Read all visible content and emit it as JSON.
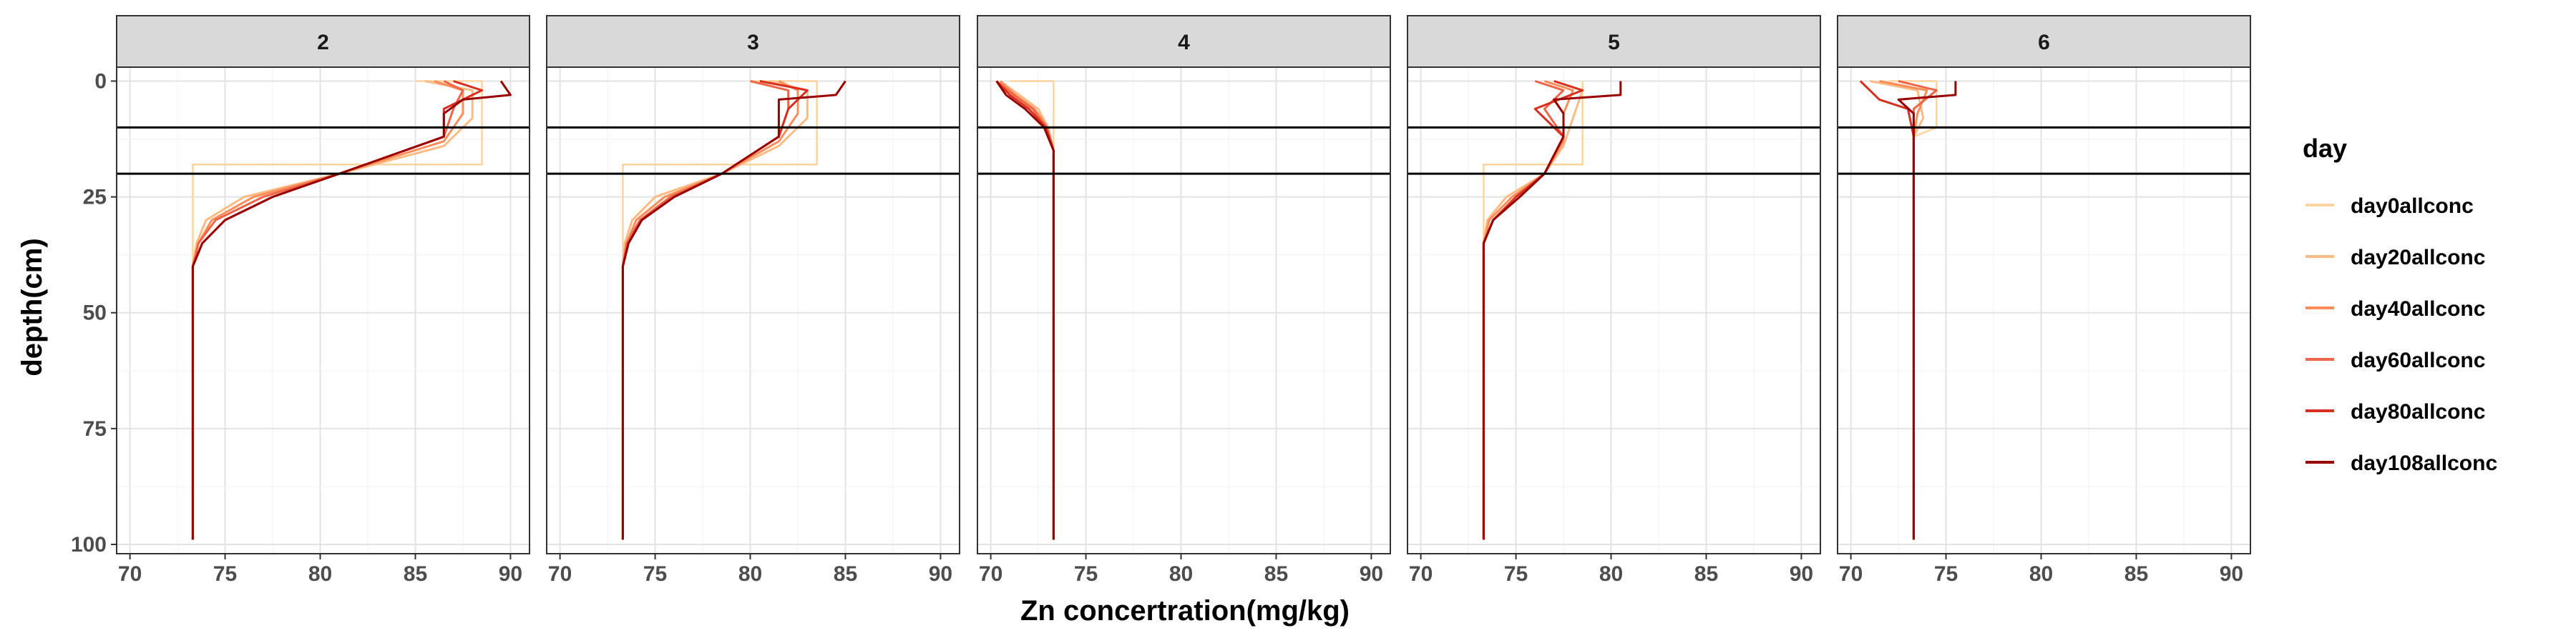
{
  "chart_data": {
    "type": "line",
    "xlabel": "Zn concertration(mg/kg)",
    "ylabel": "depth(cm)",
    "xlim": [
      69.3,
      91.0
    ],
    "ylim": [
      -3,
      102
    ],
    "y_reversed": true,
    "xticks": [
      70,
      75,
      80,
      85,
      90
    ],
    "yticks": [
      0,
      25,
      50,
      75,
      100
    ],
    "grid": true,
    "hlines": [
      10,
      20
    ],
    "legend": {
      "title": "day",
      "position": "right",
      "entries": [
        "day0allconc",
        "day20allconc",
        "day40allconc",
        "day60allconc",
        "day80allconc",
        "day108allconc"
      ]
    },
    "series_colors": [
      "#fdd49e",
      "#fdbb84",
      "#fc8d59",
      "#ef6548",
      "#d7301f",
      "#990000"
    ],
    "panels": [
      {
        "label": "2",
        "series": [
          {
            "name": "day0allconc",
            "x": [
              85,
              88.5,
              88.5,
              73.3,
              73.3,
              73.3
            ],
            "y": [
              0,
              0,
              18,
              18,
              20,
              99
            ]
          },
          {
            "name": "day20allconc",
            "x": [
              85.5,
              88,
              88,
              86.5,
              81,
              76,
              74,
              73.5,
              73.3,
              73.3
            ],
            "y": [
              0,
              2,
              8,
              14,
              20,
              25,
              30,
              35,
              40,
              99
            ]
          },
          {
            "name": "day40allconc",
            "x": [
              86,
              87.5,
              87.5,
              86.5,
              81,
              76.5,
              74.3,
              73.6,
              73.3,
              73.3
            ],
            "y": [
              0,
              2,
              7,
              13,
              20,
              25,
              30,
              35,
              40,
              99
            ]
          },
          {
            "name": "day60allconc",
            "x": [
              86.5,
              87.5,
              87,
              86.5,
              81,
              77,
              74.5,
              73.6,
              73.3,
              73.3
            ],
            "y": [
              0,
              2,
              6,
              12,
              20,
              25,
              30,
              35,
              40,
              99
            ]
          },
          {
            "name": "day80allconc",
            "x": [
              87,
              88.5,
              86.5,
              86.5,
              81,
              77.5,
              75,
              73.8,
              73.3,
              73.3
            ],
            "y": [
              0,
              2,
              6,
              12,
              20,
              25,
              30,
              35,
              40,
              99
            ]
          },
          {
            "name": "day108allconc",
            "x": [
              89.5,
              90,
              87.5,
              86.5,
              86.5,
              81,
              77.5,
              75,
              73.8,
              73.3,
              73.3
            ],
            "y": [
              0,
              3,
              4,
              7,
              12,
              20,
              25,
              30,
              35,
              40,
              99
            ]
          }
        ]
      },
      {
        "label": "3",
        "series": [
          {
            "name": "day0allconc",
            "x": [
              80,
              83.5,
              83.5,
              73.3,
              73.3,
              73.3
            ],
            "y": [
              0,
              0,
              18,
              18,
              20,
              99
            ]
          },
          {
            "name": "day20allconc",
            "x": [
              81,
              83,
              83,
              81.5,
              78.5,
              75,
              73.8,
              73.4,
              73.3,
              73.3
            ],
            "y": [
              0,
              2,
              8,
              14,
              20,
              25,
              30,
              35,
              40,
              99
            ]
          },
          {
            "name": "day40allconc",
            "x": [
              81.5,
              82.5,
              82.5,
              81.5,
              78.5,
              75.5,
              74,
              73.5,
              73.3,
              73.3
            ],
            "y": [
              0,
              2,
              7,
              13,
              20,
              25,
              30,
              35,
              40,
              99
            ]
          },
          {
            "name": "day60allconc",
            "x": [
              80,
              82,
              82,
              81.5,
              78.5,
              75.8,
              74.2,
              73.5,
              73.3,
              73.3
            ],
            "y": [
              0,
              2,
              6,
              12,
              20,
              25,
              30,
              35,
              40,
              99
            ]
          },
          {
            "name": "day80allconc",
            "x": [
              80.5,
              83,
              82,
              81.5,
              78.5,
              76,
              74.3,
              73.6,
              73.3,
              73.3
            ],
            "y": [
              0,
              2,
              6,
              12,
              20,
              25,
              30,
              35,
              40,
              99
            ]
          },
          {
            "name": "day108allconc",
            "x": [
              85,
              84.5,
              81.5,
              81.5,
              81.5,
              78.5,
              76,
              74.3,
              73.6,
              73.3,
              73.3
            ],
            "y": [
              0,
              3,
              4,
              7,
              12,
              20,
              25,
              30,
              35,
              40,
              99
            ]
          }
        ]
      },
      {
        "label": "4",
        "series": [
          {
            "name": "day0allconc",
            "x": [
              71,
              73.3,
              73.3,
              73.3
            ],
            "y": [
              0,
              0,
              18,
              99
            ]
          },
          {
            "name": "day20allconc",
            "x": [
              70.5,
              71.5,
              72.5,
              73,
              73.3,
              73.3
            ],
            "y": [
              0,
              3,
              6,
              10,
              15,
              99
            ]
          },
          {
            "name": "day40allconc",
            "x": [
              70.5,
              71.3,
              72.3,
              73,
              73.3,
              73.3
            ],
            "y": [
              0,
              3,
              6,
              10,
              15,
              99
            ]
          },
          {
            "name": "day60allconc",
            "x": [
              70.3,
              71.2,
              72.2,
              72.9,
              73.3,
              73.3
            ],
            "y": [
              0,
              3,
              6,
              10,
              15,
              99
            ]
          },
          {
            "name": "day80allconc",
            "x": [
              70.3,
              71,
              72,
              72.9,
              73.3,
              73.3
            ],
            "y": [
              0,
              3,
              6,
              10,
              15,
              99
            ]
          },
          {
            "name": "day108allconc",
            "x": [
              70.3,
              70.8,
              71.8,
              72.8,
              73.3,
              73.3
            ],
            "y": [
              0,
              3,
              6,
              10,
              15,
              99
            ]
          }
        ]
      },
      {
        "label": "5",
        "series": [
          {
            "name": "day0allconc",
            "x": [
              78.5,
              78.5,
              78.5,
              73.3,
              73.3,
              73.3
            ],
            "y": [
              0,
              0,
              18,
              18,
              20,
              99
            ]
          },
          {
            "name": "day20allconc",
            "x": [
              77,
              78.5,
              78,
              77.5,
              76.5,
              74.5,
              73.5,
              73.3,
              73.3
            ],
            "y": [
              0,
              2,
              8,
              14,
              20,
              25,
              30,
              35,
              99
            ]
          },
          {
            "name": "day40allconc",
            "x": [
              76.5,
              78,
              77.5,
              77.5,
              76.5,
              74.8,
              73.6,
              73.3,
              73.3
            ],
            "y": [
              0,
              2,
              7,
              13,
              20,
              25,
              30,
              35,
              99
            ]
          },
          {
            "name": "day60allconc",
            "x": [
              76,
              77.5,
              76.5,
              77.5,
              76.5,
              75,
              73.8,
              73.3,
              73.3
            ],
            "y": [
              0,
              2,
              6,
              12,
              20,
              25,
              30,
              35,
              99
            ]
          },
          {
            "name": "day80allconc",
            "x": [
              77,
              78.5,
              76,
              77.5,
              76.5,
              75,
              73.8,
              73.3,
              73.3
            ],
            "y": [
              0,
              2,
              6,
              12,
              20,
              25,
              30,
              35,
              99
            ]
          },
          {
            "name": "day108allconc",
            "x": [
              80.5,
              80.5,
              77,
              77.5,
              77.5,
              76.5,
              75.2,
              73.8,
              73.3,
              73.3
            ],
            "y": [
              0,
              3,
              4,
              7,
              12,
              20,
              25,
              30,
              35,
              99
            ]
          }
        ]
      },
      {
        "label": "6",
        "series": [
          {
            "name": "day0allconc",
            "x": [
              72,
              74.5,
              74.5,
              73.3,
              73.3
            ],
            "y": [
              0,
              0,
              10,
              12,
              99
            ]
          },
          {
            "name": "day20allconc",
            "x": [
              71,
              73.5,
              73.8,
              73.3,
              73.3
            ],
            "y": [
              0,
              2,
              8,
              12,
              99
            ]
          },
          {
            "name": "day40allconc",
            "x": [
              71.5,
              74,
              73.5,
              73.3,
              73.3
            ],
            "y": [
              0,
              2,
              7,
              12,
              99
            ]
          },
          {
            "name": "day60allconc",
            "x": [
              72.5,
              74.5,
              73.3,
              73.3,
              73.3
            ],
            "y": [
              0,
              2,
              6,
              12,
              99
            ]
          },
          {
            "name": "day80allconc",
            "x": [
              70.5,
              71.5,
              73,
              73.3,
              73.3
            ],
            "y": [
              0,
              4,
              6,
              12,
              99
            ]
          },
          {
            "name": "day108allconc",
            "x": [
              75.5,
              75.5,
              72.5,
              73.3,
              73.3,
              73.3
            ],
            "y": [
              0,
              3,
              4,
              7,
              12,
              99
            ]
          }
        ]
      }
    ]
  }
}
